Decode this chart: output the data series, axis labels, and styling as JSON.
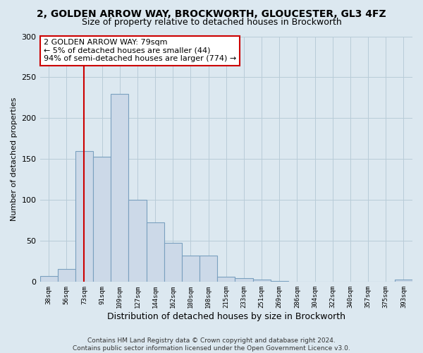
{
  "title1": "2, GOLDEN ARROW WAY, BROCKWORTH, GLOUCESTER, GL3 4FZ",
  "title2": "Size of property relative to detached houses in Brockworth",
  "xlabel": "Distribution of detached houses by size in Brockworth",
  "ylabel": "Number of detached properties",
  "bar_labels": [
    "38sqm",
    "56sqm",
    "73sqm",
    "91sqm",
    "109sqm",
    "127sqm",
    "144sqm",
    "162sqm",
    "180sqm",
    "198sqm",
    "215sqm",
    "233sqm",
    "251sqm",
    "269sqm",
    "286sqm",
    "304sqm",
    "322sqm",
    "340sqm",
    "357sqm",
    "375sqm",
    "393sqm"
  ],
  "bar_values": [
    7,
    16,
    160,
    153,
    230,
    100,
    73,
    48,
    32,
    32,
    6,
    5,
    3,
    1,
    0,
    0,
    0,
    0,
    0,
    0,
    3
  ],
  "bar_color": "#ccd9e8",
  "bar_edge_color": "#7aa0bf",
  "vline_x": 2,
  "vline_color": "#cc0000",
  "annotation_title": "2 GOLDEN ARROW WAY: 79sqm",
  "annotation_line1": "← 5% of detached houses are smaller (44)",
  "annotation_line2": "94% of semi-detached houses are larger (774) →",
  "annotation_box_color": "#ffffff",
  "annotation_box_edge": "#cc0000",
  "ylim": [
    0,
    300
  ],
  "yticks": [
    0,
    50,
    100,
    150,
    200,
    250,
    300
  ],
  "footer1": "Contains HM Land Registry data © Crown copyright and database right 2024.",
  "footer2": "Contains public sector information licensed under the Open Government Licence v3.0.",
  "bg_color": "#dce8f0",
  "plot_bg_color": "#dce8f0",
  "title1_fontsize": 10,
  "title2_fontsize": 9,
  "xlabel_fontsize": 9,
  "ylabel_fontsize": 8,
  "annotation_fontsize": 8,
  "footer_fontsize": 6.5
}
